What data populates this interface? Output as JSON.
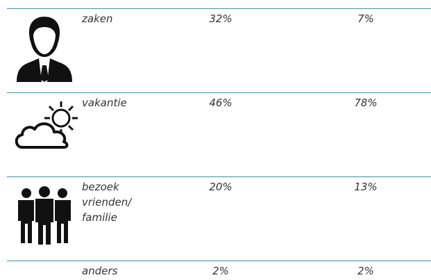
{
  "table": {
    "rows": [
      [
        "zaken",
        "32%",
        "7%"
      ],
      [
        "vakantie",
        "46%",
        "78%"
      ],
      [
        "bezoek vrienden/ familie",
        "20%",
        "13%"
      ],
      [
        "anders",
        "2%",
        "2%"
      ]
    ]
  }
}
